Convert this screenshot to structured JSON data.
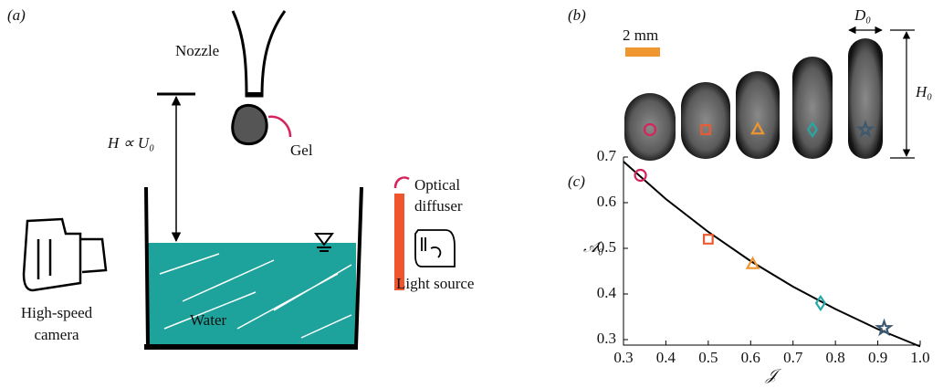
{
  "panel_a": {
    "label": "(a)",
    "nozzle": "Nozzle",
    "gel": "Gel",
    "height": "H ∝ U₀",
    "diffuser": [
      "Optical",
      "diffuser"
    ],
    "light": "Light source",
    "camera": [
      "High-speed",
      "camera"
    ],
    "water": "Water"
  },
  "panel_b": {
    "label": "(b)",
    "scale": "2 mm",
    "width": "D₀",
    "height": "H₀"
  },
  "chart_data": {
    "type": "scatter",
    "panel_label": "(c)",
    "x_label": "𝒥",
    "y_label": "𝒜₀",
    "x": [
      0.34,
      0.5,
      0.605,
      0.765,
      0.915
    ],
    "values": [
      0.66,
      0.52,
      0.465,
      0.38,
      0.325
    ],
    "colors": [
      "#d6245a",
      "#ee5a30",
      "#f0962e",
      "#26a9a6",
      "#3e5870"
    ],
    "markers": [
      "circle",
      "square",
      "triangle",
      "diamond",
      "star"
    ],
    "curve": {
      "x": [
        0.3,
        0.4,
        0.5,
        0.6,
        0.7,
        0.8,
        0.9,
        1.0
      ],
      "values": [
        0.69,
        0.608,
        0.536,
        0.472,
        0.416,
        0.367,
        0.323,
        0.285
      ],
      "color": "#000000"
    },
    "xlim": [
      0.3,
      1.0
    ],
    "ylim": [
      0.288,
      0.7
    ],
    "xticks": [
      0.3,
      0.4,
      0.5,
      0.6,
      0.7,
      0.8,
      0.9,
      {
        "value": 1,
        "label": "1.0"
      }
    ],
    "yticks": [
      0.3,
      0.4,
      0.5,
      0.6,
      0.7
    ]
  }
}
